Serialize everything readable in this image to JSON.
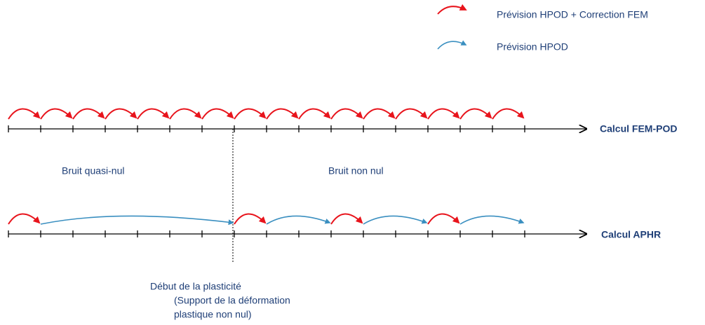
{
  "legend": {
    "items": [
      {
        "label": "Prévision HPOD + Correction FEM"
      },
      {
        "label": "Prévision HPOD"
      }
    ]
  },
  "timelines": [
    {
      "label": "Calcul FEM-POD"
    },
    {
      "label": "Calcul APHR"
    }
  ],
  "regions": [
    {
      "label": "Bruit quasi-nul"
    },
    {
      "label": "Bruit  non nul"
    }
  ],
  "annotation": {
    "lines": [
      "Début de la plasticité",
      "(Support de la déformation",
      "plastique non nul)"
    ]
  }
}
